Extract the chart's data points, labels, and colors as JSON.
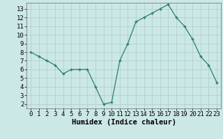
{
  "x": [
    0,
    1,
    2,
    3,
    4,
    5,
    6,
    7,
    8,
    9,
    10,
    11,
    12,
    13,
    14,
    15,
    16,
    17,
    18,
    19,
    20,
    21,
    22,
    23
  ],
  "y": [
    8.0,
    7.5,
    7.0,
    6.5,
    5.5,
    6.0,
    6.0,
    6.0,
    4.0,
    2.0,
    2.2,
    7.0,
    9.0,
    11.5,
    12.0,
    12.5,
    13.0,
    13.5,
    12.0,
    11.0,
    9.5,
    7.5,
    6.5,
    4.5
  ],
  "xlabel": "Humidex (Indice chaleur)",
  "line_color": "#2d7d6e",
  "bg_color": "#cce8e6",
  "grid_color": "#aaccca",
  "ylim": [
    1.5,
    13.7
  ],
  "xlim": [
    -0.5,
    23.5
  ],
  "yticks": [
    2,
    3,
    4,
    5,
    6,
    7,
    8,
    9,
    10,
    11,
    12,
    13
  ],
  "xticks": [
    0,
    1,
    2,
    3,
    4,
    5,
    6,
    7,
    8,
    9,
    10,
    11,
    12,
    13,
    14,
    15,
    16,
    17,
    18,
    19,
    20,
    21,
    22,
    23
  ],
  "tick_fontsize": 6.5,
  "xlabel_fontsize": 7.5
}
